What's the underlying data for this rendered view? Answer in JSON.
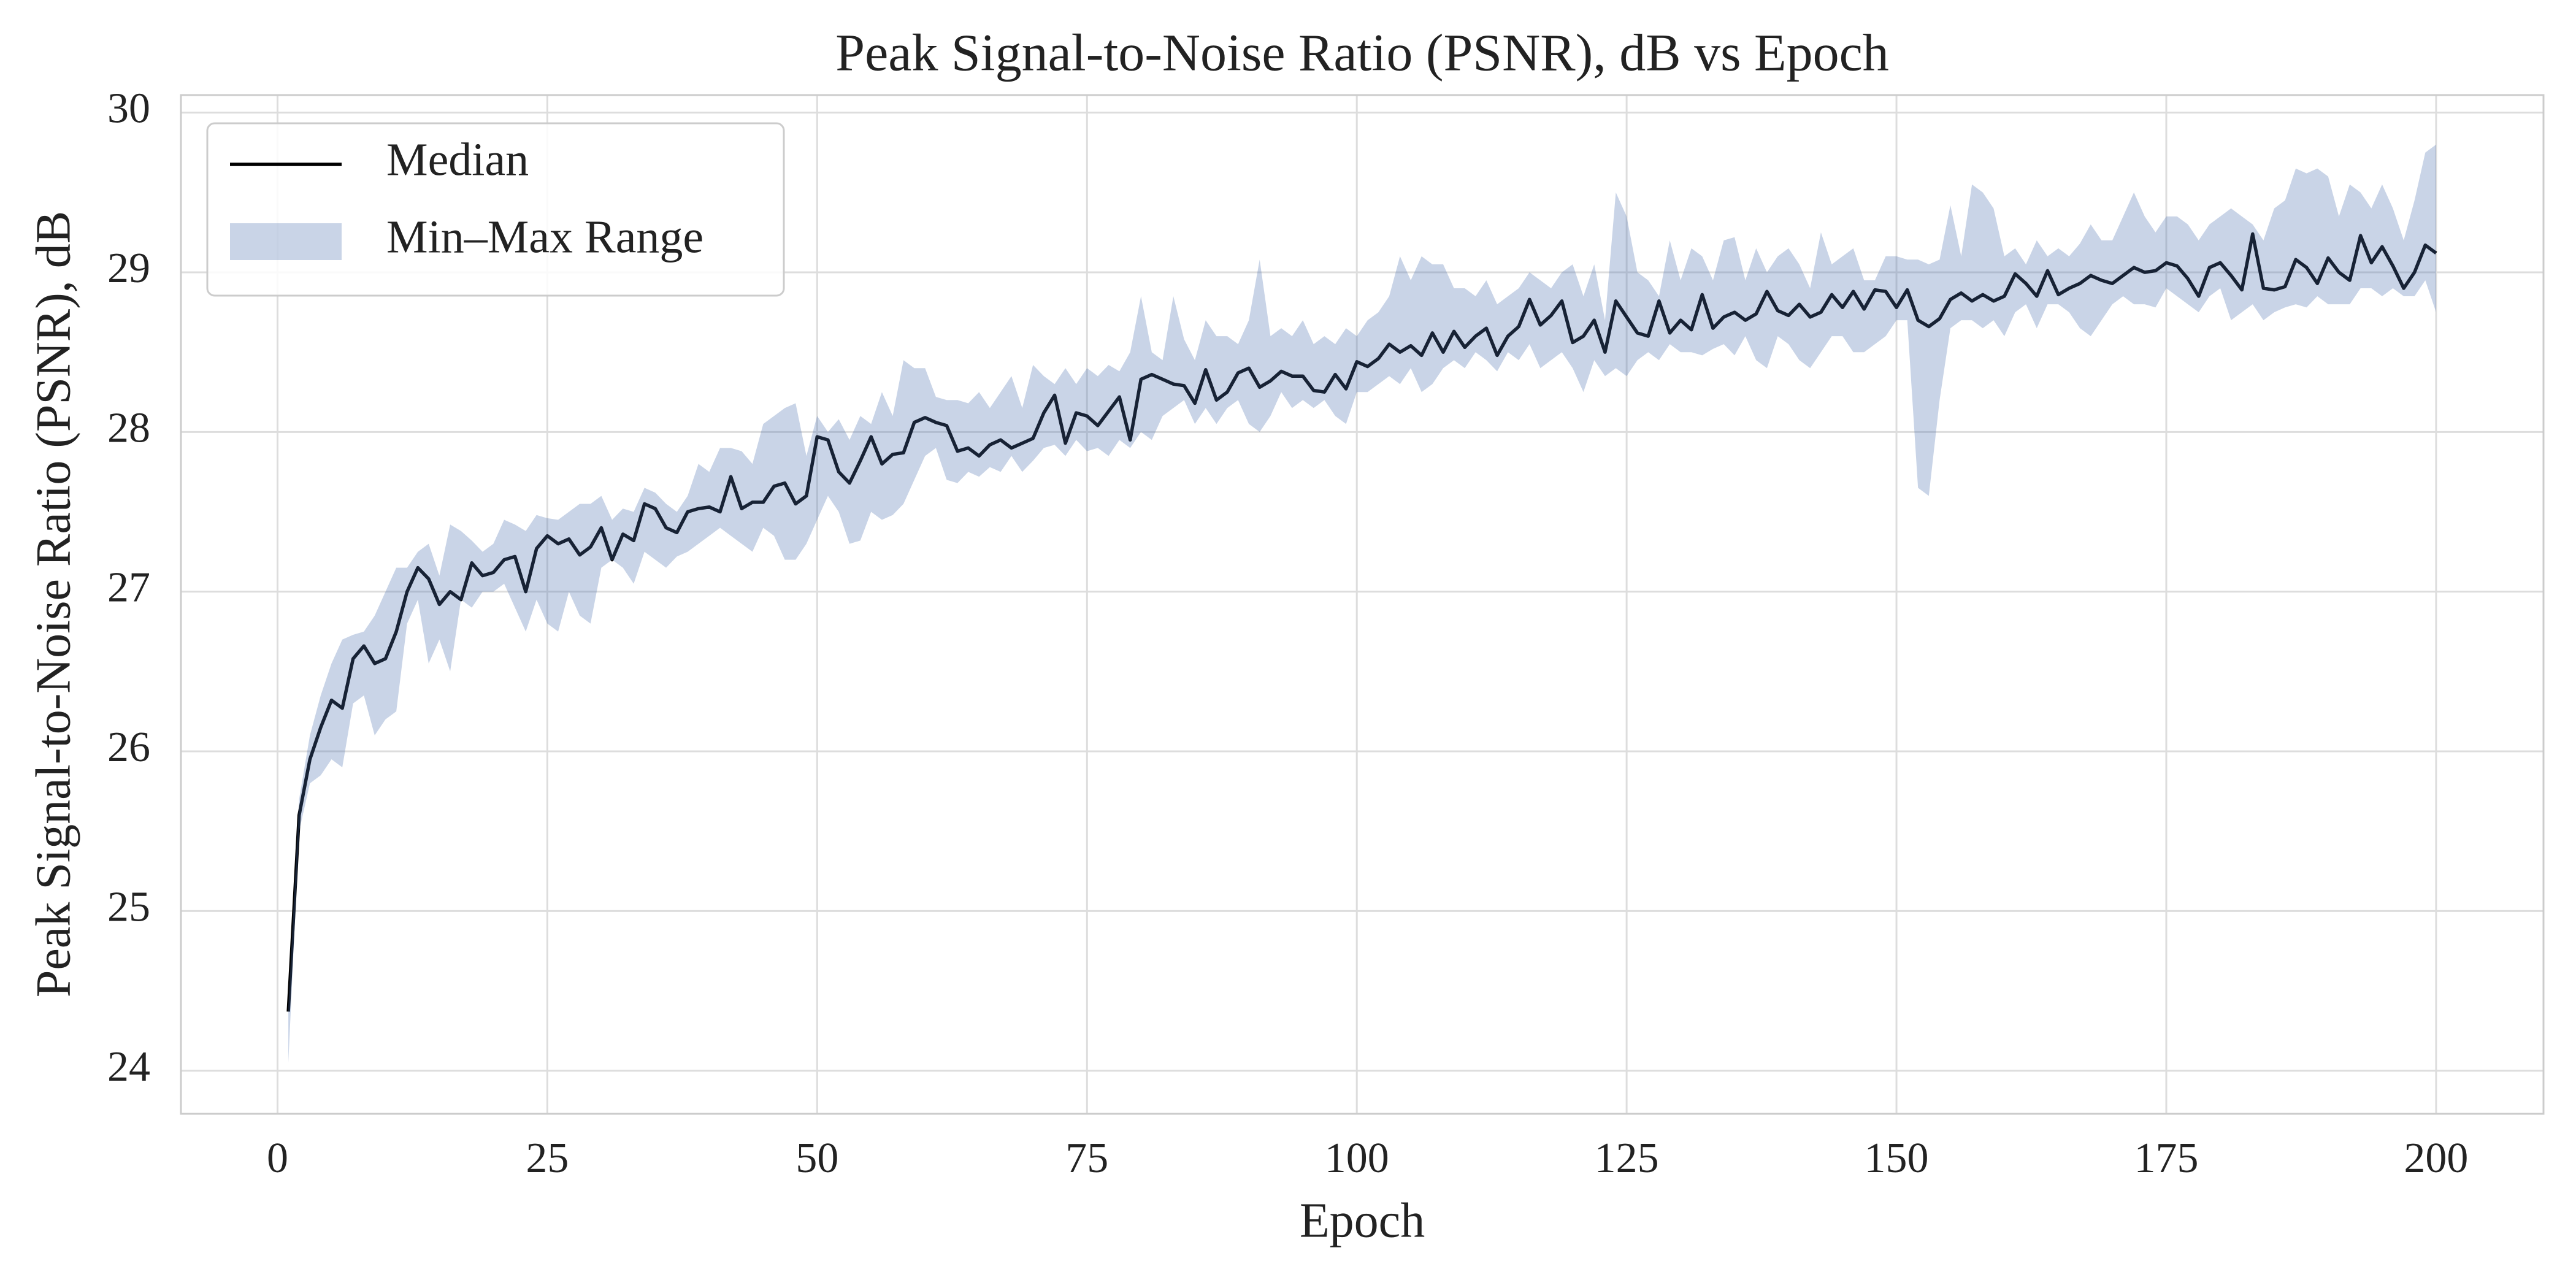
{
  "chart_data": {
    "type": "line",
    "title": "Peak Signal-to-Noise Ratio (PSNR), dB vs Epoch",
    "x_label": "Epoch",
    "y_label": "Peak Signal-to-Noise Ratio (PSNR), dB",
    "xlim": [
      -8.95,
      209.95
    ],
    "ylim": [
      23.73,
      30.11
    ],
    "xticks": [
      0,
      25,
      50,
      75,
      100,
      125,
      150,
      175,
      200
    ],
    "yticks": [
      24,
      25,
      26,
      27,
      28,
      29,
      30
    ],
    "grid": true,
    "legend": "upper left",
    "x": [
      1,
      2,
      3,
      4,
      5,
      6,
      7,
      8,
      9,
      10,
      11,
      12,
      13,
      14,
      15,
      16,
      17,
      18,
      19,
      20,
      21,
      22,
      23,
      24,
      25,
      26,
      27,
      28,
      29,
      30,
      31,
      32,
      33,
      34,
      35,
      36,
      37,
      38,
      39,
      40,
      41,
      42,
      43,
      44,
      45,
      46,
      47,
      48,
      49,
      50,
      51,
      52,
      53,
      54,
      55,
      56,
      57,
      58,
      59,
      60,
      61,
      62,
      63,
      64,
      65,
      66,
      67,
      68,
      69,
      70,
      71,
      72,
      73,
      74,
      75,
      76,
      77,
      78,
      79,
      80,
      81,
      82,
      83,
      84,
      85,
      86,
      87,
      88,
      89,
      90,
      91,
      92,
      93,
      94,
      95,
      96,
      97,
      98,
      99,
      100,
      101,
      102,
      103,
      104,
      105,
      106,
      107,
      108,
      109,
      110,
      111,
      112,
      113,
      114,
      115,
      116,
      117,
      118,
      119,
      120,
      121,
      122,
      123,
      124,
      125,
      126,
      127,
      128,
      129,
      130,
      131,
      132,
      133,
      134,
      135,
      136,
      137,
      138,
      139,
      140,
      141,
      142,
      143,
      144,
      145,
      146,
      147,
      148,
      149,
      150,
      151,
      152,
      153,
      154,
      155,
      156,
      157,
      158,
      159,
      160,
      161,
      162,
      163,
      164,
      165,
      166,
      167,
      168,
      169,
      170,
      171,
      172,
      173,
      174,
      175,
      176,
      177,
      178,
      179,
      180,
      181,
      182,
      183,
      184,
      185,
      186,
      187,
      188,
      189,
      190,
      191,
      192,
      193,
      194,
      195,
      196,
      197,
      198,
      199,
      200
    ],
    "series": [
      {
        "name": "Median",
        "color": "#000000",
        "values": [
          24.37,
          25.6,
          25.95,
          26.15,
          26.32,
          26.27,
          26.58,
          26.66,
          26.55,
          26.58,
          26.75,
          27.0,
          27.15,
          27.08,
          26.92,
          27.0,
          26.95,
          27.18,
          27.1,
          27.12,
          27.2,
          27.22,
          27.0,
          27.27,
          27.35,
          27.3,
          27.33,
          27.23,
          27.28,
          27.4,
          27.2,
          27.36,
          27.32,
          27.55,
          27.52,
          27.4,
          27.37,
          27.5,
          27.52,
          27.53,
          27.5,
          27.72,
          27.52,
          27.56,
          27.56,
          27.66,
          27.68,
          27.55,
          27.6,
          27.97,
          27.95,
          27.75,
          27.68,
          27.82,
          27.97,
          27.8,
          27.86,
          27.87,
          28.06,
          28.09,
          28.06,
          28.04,
          27.88,
          27.9,
          27.85,
          27.92,
          27.95,
          27.9,
          27.93,
          27.96,
          28.12,
          28.23,
          27.93,
          28.12,
          28.1,
          28.04,
          28.13,
          28.22,
          27.95,
          28.33,
          28.36,
          28.33,
          28.3,
          28.29,
          28.18,
          28.39,
          28.2,
          28.25,
          28.37,
          28.4,
          28.28,
          28.32,
          28.38,
          28.35,
          28.35,
          28.26,
          28.25,
          28.36,
          28.27,
          28.44,
          28.41,
          28.46,
          28.55,
          28.5,
          28.54,
          28.48,
          28.62,
          28.5,
          28.63,
          28.53,
          28.6,
          28.65,
          28.48,
          28.6,
          28.66,
          28.83,
          28.67,
          28.73,
          28.82,
          28.56,
          28.6,
          28.7,
          28.5,
          28.82,
          28.72,
          28.62,
          28.6,
          28.82,
          28.62,
          28.7,
          28.64,
          28.86,
          28.65,
          28.72,
          28.75,
          28.7,
          28.74,
          28.88,
          28.76,
          28.73,
          28.8,
          28.72,
          28.75,
          28.86,
          28.78,
          28.88,
          28.77,
          28.89,
          28.88,
          28.78,
          28.89,
          28.7,
          28.66,
          28.71,
          28.83,
          28.87,
          28.82,
          28.86,
          28.82,
          28.85,
          28.99,
          28.93,
          28.85,
          29.01,
          28.86,
          28.9,
          28.93,
          28.98,
          28.95,
          28.93,
          28.98,
          29.03,
          29.0,
          29.01,
          29.06,
          29.04,
          28.96,
          28.85,
          29.03,
          29.06,
          28.98,
          28.89,
          29.24,
          28.9,
          28.89,
          28.91,
          29.08,
          29.03,
          28.93,
          29.09,
          29.0,
          28.95,
          29.23,
          29.06,
          29.16,
          29.04,
          28.9,
          29.0,
          29.17,
          29.12
        ]
      },
      {
        "name": "Min–Max Range",
        "color": "#4c72b0",
        "max": [
          24.4,
          25.7,
          26.1,
          26.35,
          26.55,
          26.7,
          26.73,
          26.75,
          26.85,
          27.0,
          27.15,
          27.15,
          27.25,
          27.3,
          27.1,
          27.42,
          27.38,
          27.32,
          27.25,
          27.3,
          27.45,
          27.42,
          27.38,
          27.48,
          27.46,
          27.45,
          27.5,
          27.55,
          27.55,
          27.6,
          27.45,
          27.52,
          27.5,
          27.65,
          27.62,
          27.55,
          27.5,
          27.6,
          27.8,
          27.75,
          27.9,
          27.9,
          27.88,
          27.8,
          28.05,
          28.1,
          28.15,
          28.18,
          27.85,
          28.1,
          28.0,
          28.08,
          27.95,
          28.1,
          28.05,
          28.25,
          28.1,
          28.45,
          28.4,
          28.4,
          28.22,
          28.2,
          28.2,
          28.18,
          28.25,
          28.15,
          28.25,
          28.35,
          28.15,
          28.42,
          28.35,
          28.3,
          28.4,
          28.3,
          28.4,
          28.35,
          28.42,
          28.38,
          28.5,
          28.85,
          28.5,
          28.45,
          28.85,
          28.58,
          28.45,
          28.7,
          28.6,
          28.6,
          28.55,
          28.7,
          29.08,
          28.6,
          28.65,
          28.6,
          28.7,
          28.55,
          28.6,
          28.55,
          28.65,
          28.6,
          28.7,
          28.75,
          28.85,
          29.1,
          28.95,
          29.1,
          29.05,
          29.05,
          28.9,
          28.9,
          28.85,
          28.95,
          28.8,
          28.85,
          28.9,
          29.0,
          28.95,
          28.9,
          29.0,
          29.05,
          28.85,
          29.05,
          28.7,
          29.5,
          29.35,
          29.0,
          28.95,
          28.85,
          29.2,
          28.95,
          29.15,
          29.1,
          28.95,
          29.2,
          29.22,
          28.95,
          29.15,
          29.0,
          29.1,
          29.15,
          29.05,
          28.9,
          29.25,
          29.05,
          29.1,
          29.15,
          28.95,
          28.95,
          29.1,
          29.1,
          29.08,
          29.08,
          29.05,
          29.08,
          29.42,
          29.1,
          29.55,
          29.5,
          29.4,
          29.1,
          29.15,
          29.05,
          29.2,
          29.1,
          29.15,
          29.1,
          29.18,
          29.3,
          29.2,
          29.2,
          29.35,
          29.5,
          29.35,
          29.25,
          29.35,
          29.35,
          29.3,
          29.2,
          29.3,
          29.35,
          29.4,
          29.35,
          29.3,
          29.2,
          29.4,
          29.45,
          29.65,
          29.62,
          29.65,
          29.6,
          29.35,
          29.55,
          29.5,
          29.4,
          29.55,
          29.4,
          29.2,
          29.45,
          29.75,
          29.8
        ],
        "min": [
          24.05,
          25.5,
          25.8,
          25.85,
          25.95,
          25.9,
          26.3,
          26.35,
          26.1,
          26.2,
          26.25,
          26.8,
          26.95,
          26.55,
          26.7,
          26.5,
          26.95,
          26.9,
          27.0,
          27.0,
          27.05,
          26.9,
          26.75,
          26.95,
          26.8,
          26.75,
          27.0,
          26.85,
          26.8,
          27.15,
          27.2,
          27.15,
          27.05,
          27.25,
          27.2,
          27.15,
          27.22,
          27.25,
          27.3,
          27.35,
          27.4,
          27.35,
          27.3,
          27.25,
          27.4,
          27.35,
          27.2,
          27.2,
          27.3,
          27.45,
          27.6,
          27.5,
          27.3,
          27.32,
          27.5,
          27.45,
          27.48,
          27.55,
          27.7,
          27.85,
          27.9,
          27.7,
          27.68,
          27.75,
          27.72,
          27.78,
          27.75,
          27.85,
          27.75,
          27.82,
          27.9,
          27.92,
          27.85,
          27.95,
          27.88,
          27.9,
          27.85,
          27.95,
          27.9,
          28.0,
          27.95,
          28.1,
          28.15,
          28.2,
          28.05,
          28.15,
          28.05,
          28.15,
          28.2,
          28.05,
          28.0,
          28.1,
          28.25,
          28.15,
          28.2,
          28.15,
          28.2,
          28.1,
          28.05,
          28.25,
          28.25,
          28.3,
          28.35,
          28.3,
          28.4,
          28.25,
          28.3,
          28.4,
          28.45,
          28.4,
          28.5,
          28.45,
          28.38,
          28.5,
          28.45,
          28.55,
          28.4,
          28.45,
          28.5,
          28.4,
          28.25,
          28.45,
          28.35,
          28.4,
          28.35,
          28.45,
          28.5,
          28.45,
          28.55,
          28.5,
          28.5,
          28.48,
          28.52,
          28.55,
          28.48,
          28.6,
          28.45,
          28.4,
          28.6,
          28.55,
          28.45,
          28.4,
          28.5,
          28.6,
          28.6,
          28.5,
          28.5,
          28.55,
          28.6,
          28.7,
          28.7,
          27.65,
          27.6,
          28.2,
          28.65,
          28.7,
          28.7,
          28.65,
          28.7,
          28.6,
          28.75,
          28.8,
          28.65,
          28.8,
          28.8,
          28.75,
          28.65,
          28.6,
          28.7,
          28.8,
          28.85,
          28.8,
          28.8,
          28.78,
          28.9,
          28.85,
          28.8,
          28.75,
          28.85,
          28.9,
          28.7,
          28.75,
          28.8,
          28.7,
          28.75,
          28.78,
          28.8,
          28.78,
          28.85,
          28.8,
          28.8,
          28.8,
          28.9,
          28.9,
          28.85,
          28.9,
          28.85,
          28.85,
          28.95,
          28.75
        ]
      }
    ]
  }
}
